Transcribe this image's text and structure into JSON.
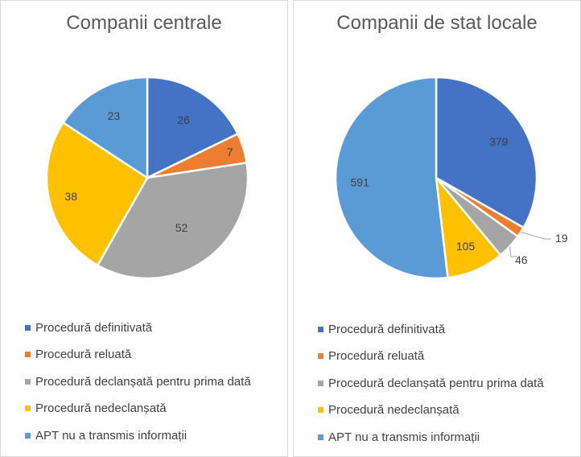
{
  "chart_data": [
    {
      "type": "pie",
      "title": "Companii centrale",
      "categories": [
        "Procedură definitivată",
        "Procedură reluată",
        "Procedură declanșată pentru prima dată",
        "Procedură nedeclanșată",
        "APT nu a transmis informații"
      ],
      "values": [
        26,
        7,
        52,
        38,
        23
      ],
      "colors": [
        "#4472c4",
        "#ed7d31",
        "#a5a5a5",
        "#ffc000",
        "#5b9bd5"
      ],
      "legend": "bottom"
    },
    {
      "type": "pie",
      "title": "Companii de stat locale",
      "categories": [
        "Procedură definitivată",
        "Procedură reluată",
        "Procedură declanșată pentru prima dată",
        "Procedură nedeclanșată",
        "APT nu a transmis informații"
      ],
      "values": [
        379,
        19,
        46,
        105,
        591
      ],
      "colors": [
        "#4472c4",
        "#ed7d31",
        "#a5a5a5",
        "#ffc000",
        "#5b9bd5"
      ],
      "legend": "bottom"
    }
  ]
}
